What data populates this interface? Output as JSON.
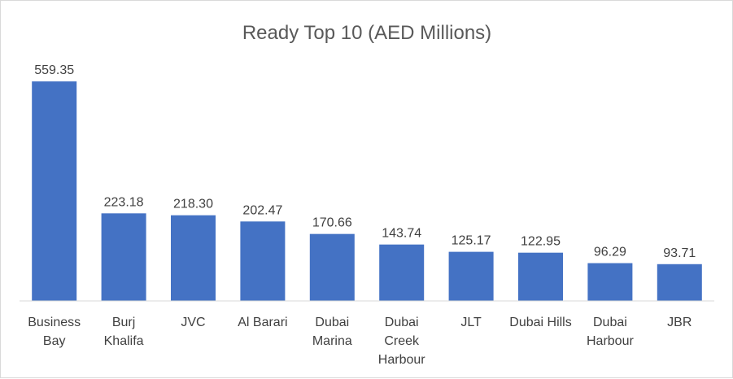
{
  "chart_data": {
    "type": "bar",
    "title": "Ready Top 10 (AED Millions)",
    "categories": [
      [
        "Business",
        "Bay"
      ],
      [
        "Burj",
        "Khalifa"
      ],
      [
        "JVC"
      ],
      [
        "Al Barari"
      ],
      [
        "Dubai",
        "Marina"
      ],
      [
        "Dubai",
        "Creek",
        "Harbour"
      ],
      [
        "JLT"
      ],
      [
        "Dubai Hills"
      ],
      [
        "Dubai",
        "Harbour"
      ],
      [
        "JBR"
      ]
    ],
    "values": [
      559.35,
      223.18,
      218.3,
      202.47,
      170.66,
      143.74,
      125.17,
      122.95,
      96.29,
      93.71
    ],
    "value_labels": [
      "559.35",
      "223.18",
      "218.30",
      "202.47",
      "170.66",
      "143.74",
      "125.17",
      "122.95",
      "96.29",
      "93.71"
    ],
    "xlabel": "",
    "ylabel": "",
    "ylim": [
      0,
      600
    ],
    "grid": false,
    "legend": "none",
    "bar_color": "#4472c4"
  }
}
